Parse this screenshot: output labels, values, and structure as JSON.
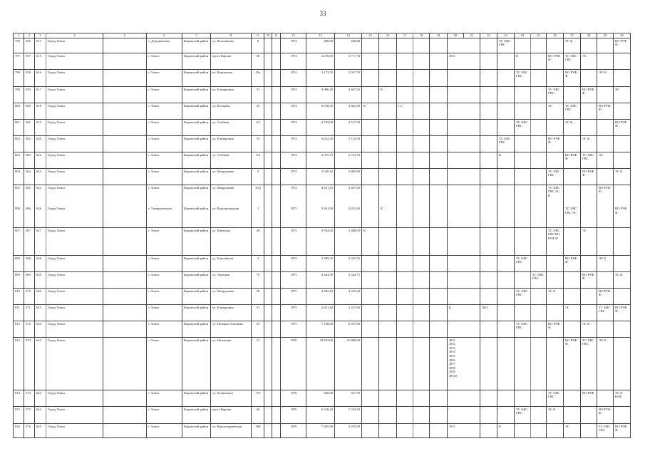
{
  "page_number": "33",
  "column_headers": [
    "1",
    "2",
    "3",
    "4",
    "5",
    "6",
    "7",
    "8",
    "9",
    "10",
    "11",
    "12",
    "13",
    "14",
    "15",
    "16",
    "17",
    "18",
    "19",
    "20",
    "21",
    "22",
    "23",
    "24",
    "25",
    "26",
    "27",
    "28",
    "29",
    "30"
  ],
  "rows": [
    {
      "c1": "796",
      "c2": "356",
      "c3": "613",
      "c4": "Город Томск",
      "c6": "с. Дзержинское",
      "c7": "Кировский район",
      "c8": "ул. Вольникова",
      "c9": "6",
      "c12": "1974",
      "c13": "480,80",
      "c14": "446,80",
      "marks": {
        "23": "ТС ХВС ГВС",
        "27": "ЭС К",
        "30": "ВО РУФ Ф"
      }
    },
    {
      "c1": "797",
      "c2": "357",
      "c3": "615",
      "c4": "Город Томск",
      "c6": "г. Томск",
      "c7": "Кировский район",
      "c8": "пр-кт Кирова",
      "c9": "58",
      "c12": "1974",
      "c13": "4 276,00",
      "c14": "3 717,74",
      "marks": {
        "20": "ЛО1",
        "24": "К",
        "26": "ВО РУФ Ф",
        "27": "ТС ХВС ГВС",
        "28": "ЭС"
      }
    },
    {
      "c1": "798",
      "c2": "358",
      "c3": "616",
      "c4": "Город Томск",
      "c6": "г. Томск",
      "c7": "Кировский район",
      "c8": "ул. Карташова",
      "c9": "45а",
      "c12": "1974",
      "c13": "3 173,70",
      "c14": "2 917,70",
      "marks": {
        "24": "ТС ХВС ГВС",
        "27": "ВО РУФ Ф",
        "29": "ЭС К"
      }
    },
    {
      "c1": "799",
      "c2": "359",
      "c3": "617",
      "c4": "Город Томск",
      "c6": "г. Томск",
      "c7": "Кировский район",
      "c8": "ул. Елизаровых",
      "c9": "31",
      "c12": "1974",
      "c13": "4 986,20",
      "c14": "4 407,32",
      "marks": {
        "16": "К",
        "26": "ТС ХВС ГВС",
        "28": "ВО РУФ Ф",
        "30": "ЭС"
      }
    },
    {
      "c1": "800",
      "c2": "360",
      "c3": "618",
      "c4": "Город Томск",
      "c6": "г. Томск",
      "c7": "Кировский район",
      "c8": "ул. Косарева",
      "c9": "25",
      "c12": "1974",
      "c13": "6 556,50",
      "c14": "4 862,50",
      "marks": {
        "15": "К",
        "17": "ГС",
        "26": "ЭС",
        "27": "ТС ХВС ГВС",
        "29": "ВО РУФ Ф"
      }
    },
    {
      "c1": "801",
      "c2": "361",
      "c3": "619",
      "c4": "Город Томск",
      "c6": "г. Томск",
      "c7": "Кировский район",
      "c8": "ул. Учебная",
      "c9": "3/2",
      "c12": "1974",
      "c13": "4 765,00",
      "c14": "4 537,50",
      "marks": {
        "24": "ТС ХВС ГВС",
        "27": "ЭС К",
        "30": "ВО РУФ Ф"
      }
    },
    {
      "c1": "802",
      "c2": "362",
      "c3": "620",
      "c4": "Город Томск",
      "c6": "г. Томск",
      "c7": "Кировский район",
      "c8": "ул. Елизаровых",
      "c9": "55",
      "c12": "1974",
      "c13": "6 252,20",
      "c14": "5 133,50",
      "marks": {
        "23": "ТС ХВС ГВС",
        "26": "ВО РУФ Ф",
        "28": "ЭС К"
      }
    },
    {
      "c1": "803",
      "c2": "363",
      "c3": "622",
      "c4": "Город Томск",
      "c6": "г. Томск",
      "c7": "Кировский район",
      "c8": "ул. Учебная",
      "c9": "5/4",
      "c12": "1974",
      "c13": "2 975,70",
      "c14": "2 733,70",
      "marks": {
        "23": "К",
        "27": "ВО РУФ Ф",
        "28": "ТС ХВС ГВС",
        "29": "ЭС"
      }
    },
    {
      "c1": "804",
      "c2": "364",
      "c3": "623",
      "c4": "Город Томск",
      "c6": "г. Томск",
      "c7": "Кировский район",
      "c8": "ул. Мокрушина",
      "c9": "5",
      "c12": "1974",
      "c13": "3 320,20",
      "c14": "2 880,80",
      "marks": {
        "26": "ТС ХВС ГВС",
        "28": "ВО РУФ Ф",
        "30": "ЭС К"
      }
    },
    {
      "c1": "805",
      "c2": "365",
      "c3": "624",
      "c4": "Город Томск",
      "c6": "г. Томск",
      "c7": "Кировский район",
      "c8": "ул. Мокрушина",
      "c9": "16/2",
      "c12": "1974",
      "c13": "4 831,10",
      "c14": "4 497,20",
      "marks": {
        "26": "ТС ХВС ГВС ЭС К",
        "29": "ВО РУФ Ф"
      }
    },
    {
      "c1": "806",
      "c2": "366",
      "c3": "626",
      "c4": "Город Томск",
      "c6": "г. Тимирязевское",
      "c7": "Кировский район",
      "c8": "ул. Водопроводная",
      "c9": "1",
      "c12": "1975",
      "c13": "3 461,90",
      "c14": "2 653,40",
      "marks": {
        "16": "К",
        "27": "ТС ХВС ГВС ЭС",
        "30": "ВО РУФ Ф"
      }
    },
    {
      "c1": "807",
      "c2": "367",
      "c3": "627",
      "c4": "Город Томск",
      "c6": "г. Томск",
      "c7": "Кировский район",
      "c8": "ул. Киевская",
      "c9": "49",
      "c12": "1975",
      "c13": "3 954,50",
      "c14": "3 486,00",
      "marks": {
        "15": "К",
        "26": "ТС ХВС ГВС ВО РУФ Ф",
        "28": "ЭС"
      }
    },
    {
      "c1": "808",
      "c2": "368",
      "c3": "628",
      "c4": "Город Томск",
      "c6": "г. Томск",
      "c7": "Кировский район",
      "c8": "ул. Енисейская",
      "c9": "3",
      "c12": "1975",
      "c13": "3 399,76",
      "c14": "3 335,76",
      "marks": {
        "24": "ТС ХВС ГВС",
        "27": "ВО РУФ Ф",
        "29": "ЭС К"
      }
    },
    {
      "c1": "809",
      "c2": "369",
      "c3": "629",
      "c4": "Город Томск",
      "c6": "г. Томск",
      "c7": "Кировский район",
      "c8": "ул. Тверская",
      "c9": "79",
      "c12": "1975",
      "c13": "4 444,59",
      "c14": "3 324,75",
      "marks": {
        "25": "ТС ХВС ГВС",
        "28": "ВО РУФ Ф",
        "30": "ЭС К"
      }
    },
    {
      "c1": "810",
      "c2": "370",
      "c3": "630",
      "c4": "Город Томск",
      "c6": "г. Томск",
      "c7": "Кировский район",
      "c8": "ул. Мокрушина",
      "c9": "20",
      "c12": "1975",
      "c13": "4 382,40",
      "c14": "4 335,20",
      "marks": {
        "24": "ТС ХВС ГВС",
        "26": "ЭС К",
        "29": "ВО РУФ Ф"
      }
    },
    {
      "c1": "811",
      "c2": "371",
      "c3": "631",
      "c4": "Город Томск",
      "c6": "г. Томск",
      "c7": "Кировский район",
      "c8": "ул. Елизаровых",
      "c9": "51",
      "c12": "1975",
      "c13": "2 651,40",
      "c14": "2 247,60",
      "marks": {
        "20": "К",
        "22": "ЛО1",
        "27": "ЭС",
        "29": "ТС ХВС ГВС",
        "30": "ВО РУФ Ф"
      }
    },
    {
      "c1": "812",
      "c2": "372",
      "c3": "634",
      "c4": "Город Томск",
      "c6": "г. Томск",
      "c7": "Кировский район",
      "c8": "ул. Полины Осипенко",
      "c9": "23",
      "c12": "1975",
      "c13": "7 198,00",
      "c14": "6 037,90",
      "marks": {
        "24": "ТС ХВС ГВС",
        "26": "ВО РУФ Ф",
        "28": "ЭС К"
      }
    },
    {
      "c1": "813",
      "c2": "373",
      "c3": "642",
      "c4": "Город Томск",
      "c6": "г. Томск",
      "c7": "Кировский район",
      "c8": "ул. Нахимова",
      "c9": "15",
      "c12": "1976",
      "c13": "23 632,00",
      "c14": "21 800,00",
      "marks": {
        "20": "ЛО1\nЛО2\nЛО3\nЛО4\nЛО5\nЛО6\nЛО7\nЛО8\nЛО9\nЛО10",
        "27": "ВО РУФ Ф",
        "28": "ТС ХВС ГВС",
        "29": "ЭС К"
      }
    },
    {
      "c1": "814",
      "c2": "374",
      "c3": "643",
      "c4": "Город Томск",
      "c6": "г. Томск",
      "c7": "Кировский район",
      "c8": "ул. Белинского",
      "c9": "77б",
      "c12": "1976",
      "c13": "560,60",
      "c14": "527,70",
      "marks": {
        "26": "ТС ХВС ГВС",
        "28": "ВО РУФ",
        "30": "ЭС К КОК"
      }
    },
    {
      "c1": "815",
      "c2": "375",
      "c3": "644",
      "c4": "Город Томск",
      "c6": "г. Томск",
      "c7": "Кировский район",
      "c8": "пр-кт Кирова",
      "c9": "40",
      "c12": "1976",
      "c13": "6 526,20",
      "c14": "5 333,50",
      "marks": {
        "24": "ТС ХВС ГВС",
        "26": "ЭС К",
        "29": "ВО РУФ Ф"
      }
    },
    {
      "c1": "816",
      "c2": "376",
      "c3": "645",
      "c4": "Город Томск",
      "c6": "г. Томск",
      "c7": "Кировский район",
      "c8": "ул. Красноармейская",
      "c9": "108",
      "c12": "1976",
      "c13": "7 485,99",
      "c14": "3 205,99",
      "marks": {
        "20": "ЛО1",
        "23": "К",
        "27": "ЭС",
        "29": "ТС ХВС ГВС",
        "30": "ВО РУФ Ф"
      }
    }
  ]
}
